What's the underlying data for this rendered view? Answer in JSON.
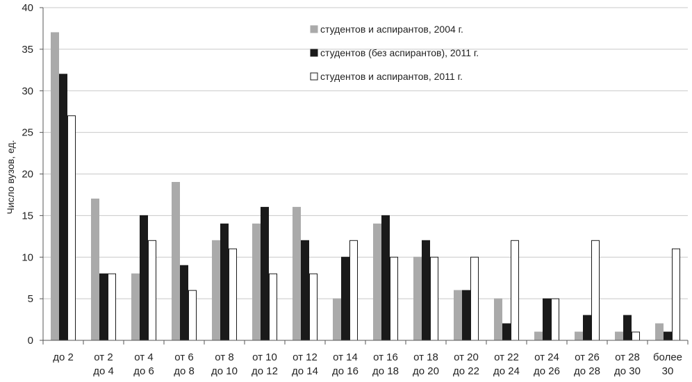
{
  "chart_data": {
    "type": "bar",
    "title": "",
    "xlabel": "",
    "ylabel": "Число вузов, ед.",
    "ylim": [
      0,
      40
    ],
    "yticks": [
      0,
      5,
      10,
      15,
      20,
      25,
      30,
      35,
      40
    ],
    "grid": true,
    "legend_position": "top-right",
    "categories": [
      [
        "до 2"
      ],
      [
        "от 2",
        "до 4"
      ],
      [
        "от 4",
        "до 6"
      ],
      [
        "от 6",
        "до 8"
      ],
      [
        "от 8",
        "до 10"
      ],
      [
        "от 10",
        "до 12"
      ],
      [
        "от 12",
        "до 14"
      ],
      [
        "от 14",
        "до 16"
      ],
      [
        "от 16",
        "до 18"
      ],
      [
        "от 18",
        "до 20"
      ],
      [
        "от 20",
        "до 22"
      ],
      [
        "от 22",
        "до 24"
      ],
      [
        "от 24",
        "до 26"
      ],
      [
        "от 26",
        "до 28"
      ],
      [
        "от 28",
        "до 30"
      ],
      [
        "более",
        "30"
      ]
    ],
    "series": [
      {
        "name": "студентов и аспирантов, 2004 г.",
        "color": "#aaaaaa",
        "stroke": "#aaaaaa",
        "values": [
          37,
          17,
          8,
          19,
          12,
          14,
          16,
          5,
          14,
          10,
          6,
          5,
          1,
          1,
          1,
          2
        ]
      },
      {
        "name": "студентов (без аспирантов), 2011 г.",
        "color": "#1a1a1a",
        "stroke": "#1a1a1a",
        "values": [
          32,
          8,
          15,
          9,
          14,
          16,
          12,
          10,
          15,
          12,
          6,
          2,
          5,
          3,
          3,
          1
        ]
      },
      {
        "name": "студентов и аспирантов, 2011 г.",
        "color": "#ffffff",
        "stroke": "#1a1a1a",
        "values": [
          27,
          8,
          12,
          6,
          11,
          8,
          8,
          12,
          10,
          10,
          10,
          12,
          5,
          12,
          1,
          11
        ]
      }
    ]
  }
}
